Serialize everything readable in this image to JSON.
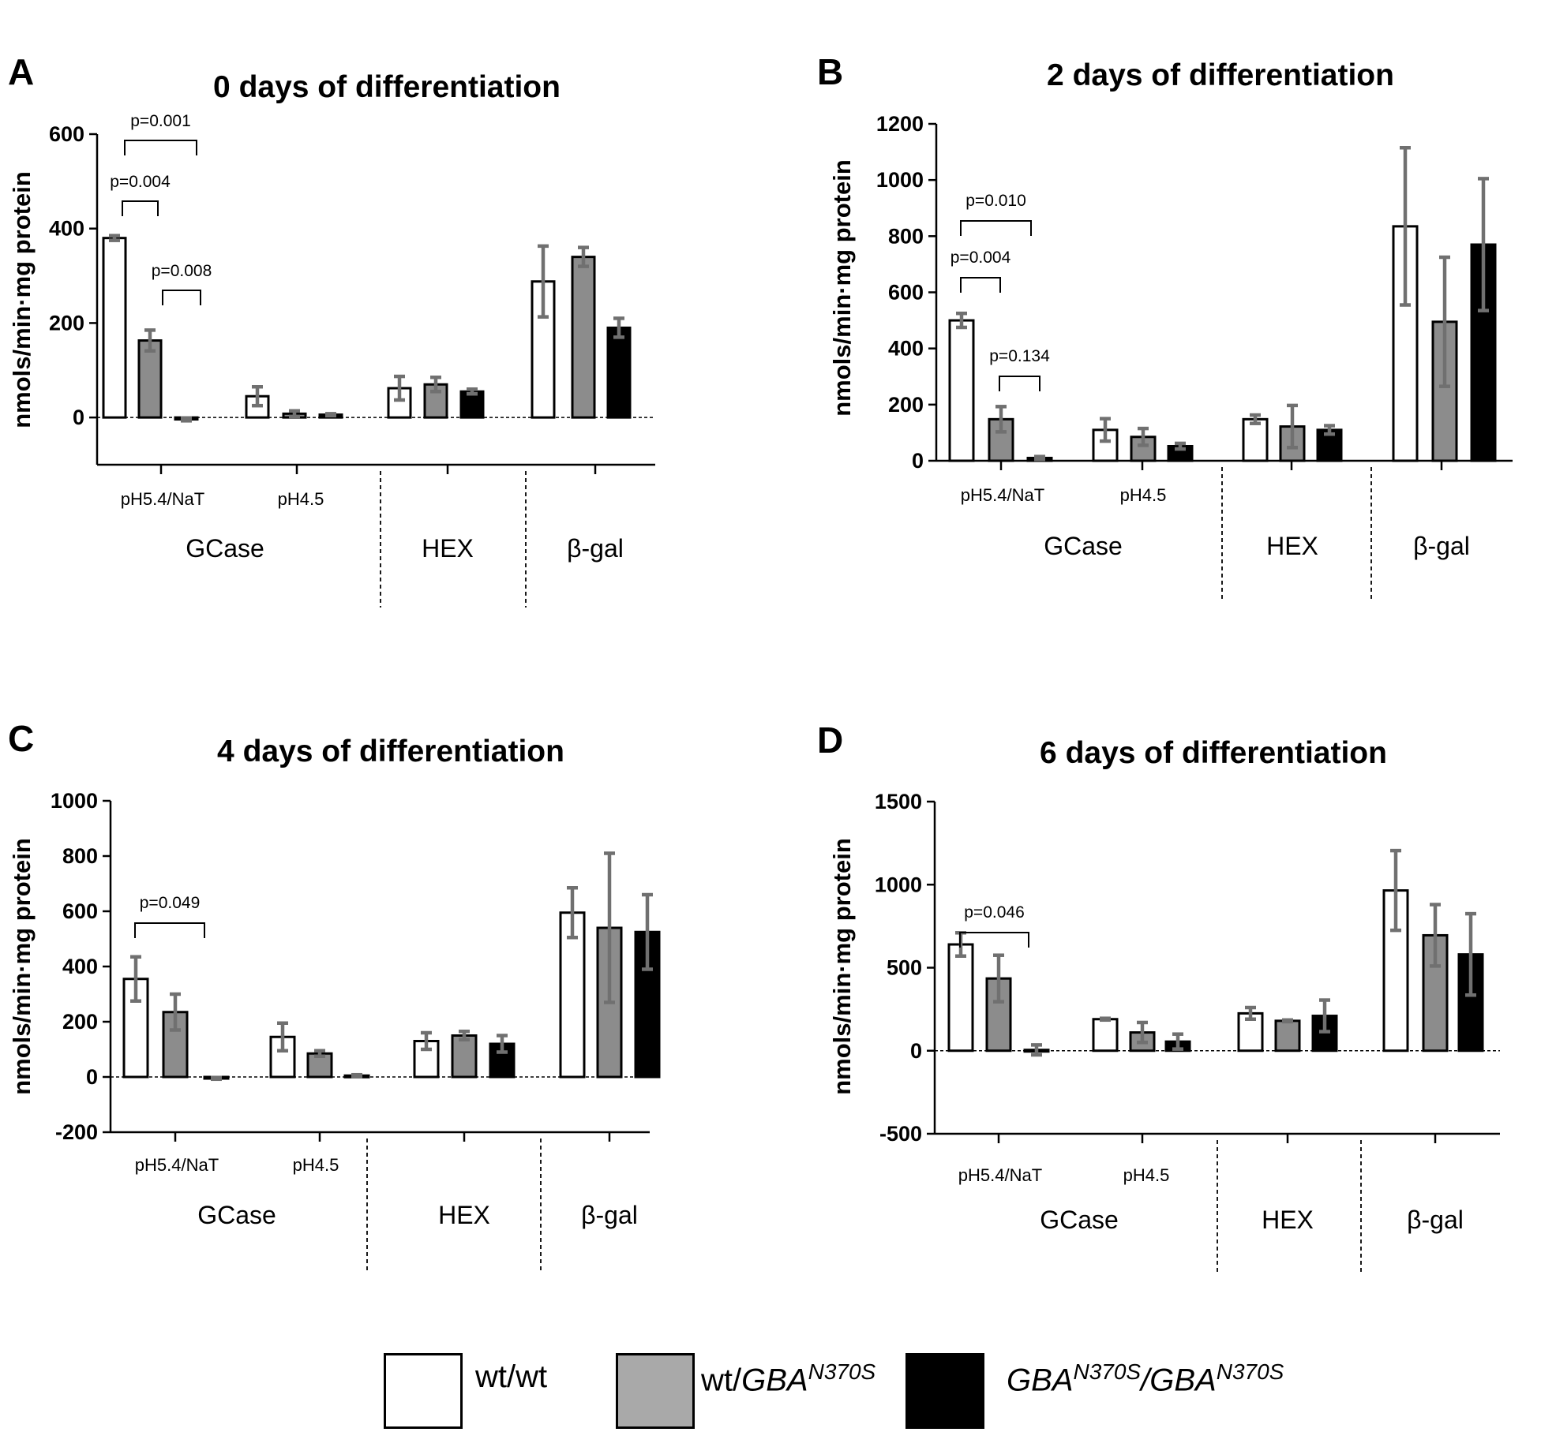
{
  "chart_data": [
    {
      "panel": "A",
      "type": "bar",
      "title": "0 days of differentiation",
      "ylabel": "nmols/min·mg protein",
      "ylim": [
        -100,
        600
      ],
      "yticks": [
        "600",
        "400",
        "200",
        "0"
      ],
      "categories": [
        "pH5.4/NaT",
        "pH4.5",
        "HEX",
        "β-gal"
      ],
      "groups": [
        "GCase",
        "HEX",
        "β-gal"
      ],
      "series": [
        {
          "legend": "wt/wt",
          "values": [
            380,
            45,
            62,
            288
          ],
          "errors": [
            5,
            20,
            25,
            75
          ]
        },
        {
          "legend": "wt/GBAN370S",
          "values": [
            163,
            8,
            70,
            340
          ],
          "errors": [
            22,
            6,
            15,
            20
          ]
        },
        {
          "legend": "GBAN370S/GBAN370S",
          "values": [
            -4,
            6,
            55,
            190
          ],
          "errors": [
            3,
            2,
            5,
            20
          ]
        }
      ],
      "significance": [
        {
          "label": "p=0.001",
          "from": "wt/wt",
          "to": "GBAN370S/GBAN370S"
        },
        {
          "label": "p=0.004",
          "from": "wt/wt",
          "to": "wt/GBAN370S"
        },
        {
          "label": "p=0.008",
          "from": "wt/GBAN370S",
          "to": "GBAN370S/GBAN370S"
        }
      ]
    },
    {
      "panel": "B",
      "type": "bar",
      "title": "2 days of differentiation",
      "ylabel": "nmols/min·mg protein",
      "ylim": [
        0,
        1200
      ],
      "yticks": [
        "1200",
        "1000",
        "800",
        "600",
        "400",
        "200",
        "0"
      ],
      "categories": [
        "pH5.4/NaT",
        "pH4.5",
        "HEX",
        "β-gal"
      ],
      "groups": [
        "GCase",
        "HEX",
        "β-gal"
      ],
      "series": [
        {
          "legend": "wt/wt",
          "values": [
            500,
            110,
            148,
            835
          ],
          "errors": [
            25,
            40,
            15,
            280
          ]
        },
        {
          "legend": "wt/GBAN370S",
          "values": [
            148,
            85,
            122,
            495
          ],
          "errors": [
            45,
            30,
            75,
            230
          ]
        },
        {
          "legend": "GBAN370S/GBAN370S",
          "values": [
            10,
            52,
            110,
            770
          ],
          "errors": [
            5,
            10,
            15,
            235
          ]
        }
      ],
      "significance": [
        {
          "label": "p=0.010",
          "from": "wt/wt",
          "to": "GBAN370S/GBAN370S"
        },
        {
          "label": "p=0.004",
          "from": "wt/wt",
          "to": "wt/GBAN370S"
        },
        {
          "label": "p=0.134",
          "from": "wt/GBAN370S",
          "to": "GBAN370S/GBAN370S"
        }
      ]
    },
    {
      "panel": "C",
      "type": "bar",
      "title": "4 days of differentiation",
      "ylabel": "nmols/min·mg protein",
      "ylim": [
        -200,
        1000
      ],
      "yticks": [
        "1000",
        "800",
        "600",
        "400",
        "200",
        "0",
        "-200"
      ],
      "categories": [
        "pH5.4/NaT",
        "pH4.5",
        "HEX",
        "β-gal"
      ],
      "groups": [
        "GCase",
        "HEX",
        "β-gal"
      ],
      "series": [
        {
          "legend": "wt/wt",
          "values": [
            355,
            145,
            130,
            595
          ],
          "errors": [
            80,
            50,
            30,
            90
          ]
        },
        {
          "legend": "wt/GBAN370S",
          "values": [
            235,
            85,
            150,
            540
          ],
          "errors": [
            65,
            10,
            15,
            270
          ]
        },
        {
          "legend": "GBAN370S/GBAN370S",
          "values": [
            -5,
            5,
            120,
            525
          ],
          "errors": [
            3,
            3,
            30,
            135
          ]
        }
      ],
      "significance": [
        {
          "label": "p=0.049",
          "from": "wt/wt",
          "to": "GBAN370S/GBAN370S"
        }
      ]
    },
    {
      "panel": "D",
      "type": "bar",
      "title": "6 days of differentiation",
      "ylabel": "nmols/min·mg protein",
      "ylim": [
        -500,
        1500
      ],
      "yticks": [
        "1500",
        "1000",
        "500",
        "0",
        "-500"
      ],
      "categories": [
        "pH5.4/NaT",
        "pH4.5",
        "HEX",
        "β-gal"
      ],
      "groups": [
        "GCase",
        "HEX",
        "β-gal"
      ],
      "series": [
        {
          "legend": "wt/wt",
          "values": [
            640,
            190,
            225,
            965
          ],
          "errors": [
            70,
            5,
            35,
            240
          ]
        },
        {
          "legend": "wt/GBAN370S",
          "values": [
            435,
            110,
            180,
            695
          ],
          "errors": [
            140,
            60,
            5,
            185
          ]
        },
        {
          "legend": "GBAN370S/GBAN370S",
          "values": [
            5,
            55,
            210,
            580
          ],
          "errors": [
            30,
            45,
            95,
            245
          ]
        }
      ],
      "significance": [
        {
          "label": "p=0.046",
          "from": "wt/wt",
          "to": "GBAN370S/GBAN370S"
        }
      ]
    }
  ],
  "legend": [
    {
      "text": "wt/wt",
      "color": "#ffffff"
    },
    {
      "prefix": "wt/",
      "gene": "GBA",
      "sup": "N370S",
      "color": "#a9a9a9"
    },
    {
      "gene": "GBA",
      "sup": "N370S",
      "sep": "/",
      "gene2": "GBA",
      "sup2": "N370S",
      "color": "#000000"
    }
  ],
  "colors": {
    "series": [
      "#ffffff",
      "#8c8c8c",
      "#000000"
    ],
    "error_bar": "#707070",
    "axis": "#000000"
  }
}
